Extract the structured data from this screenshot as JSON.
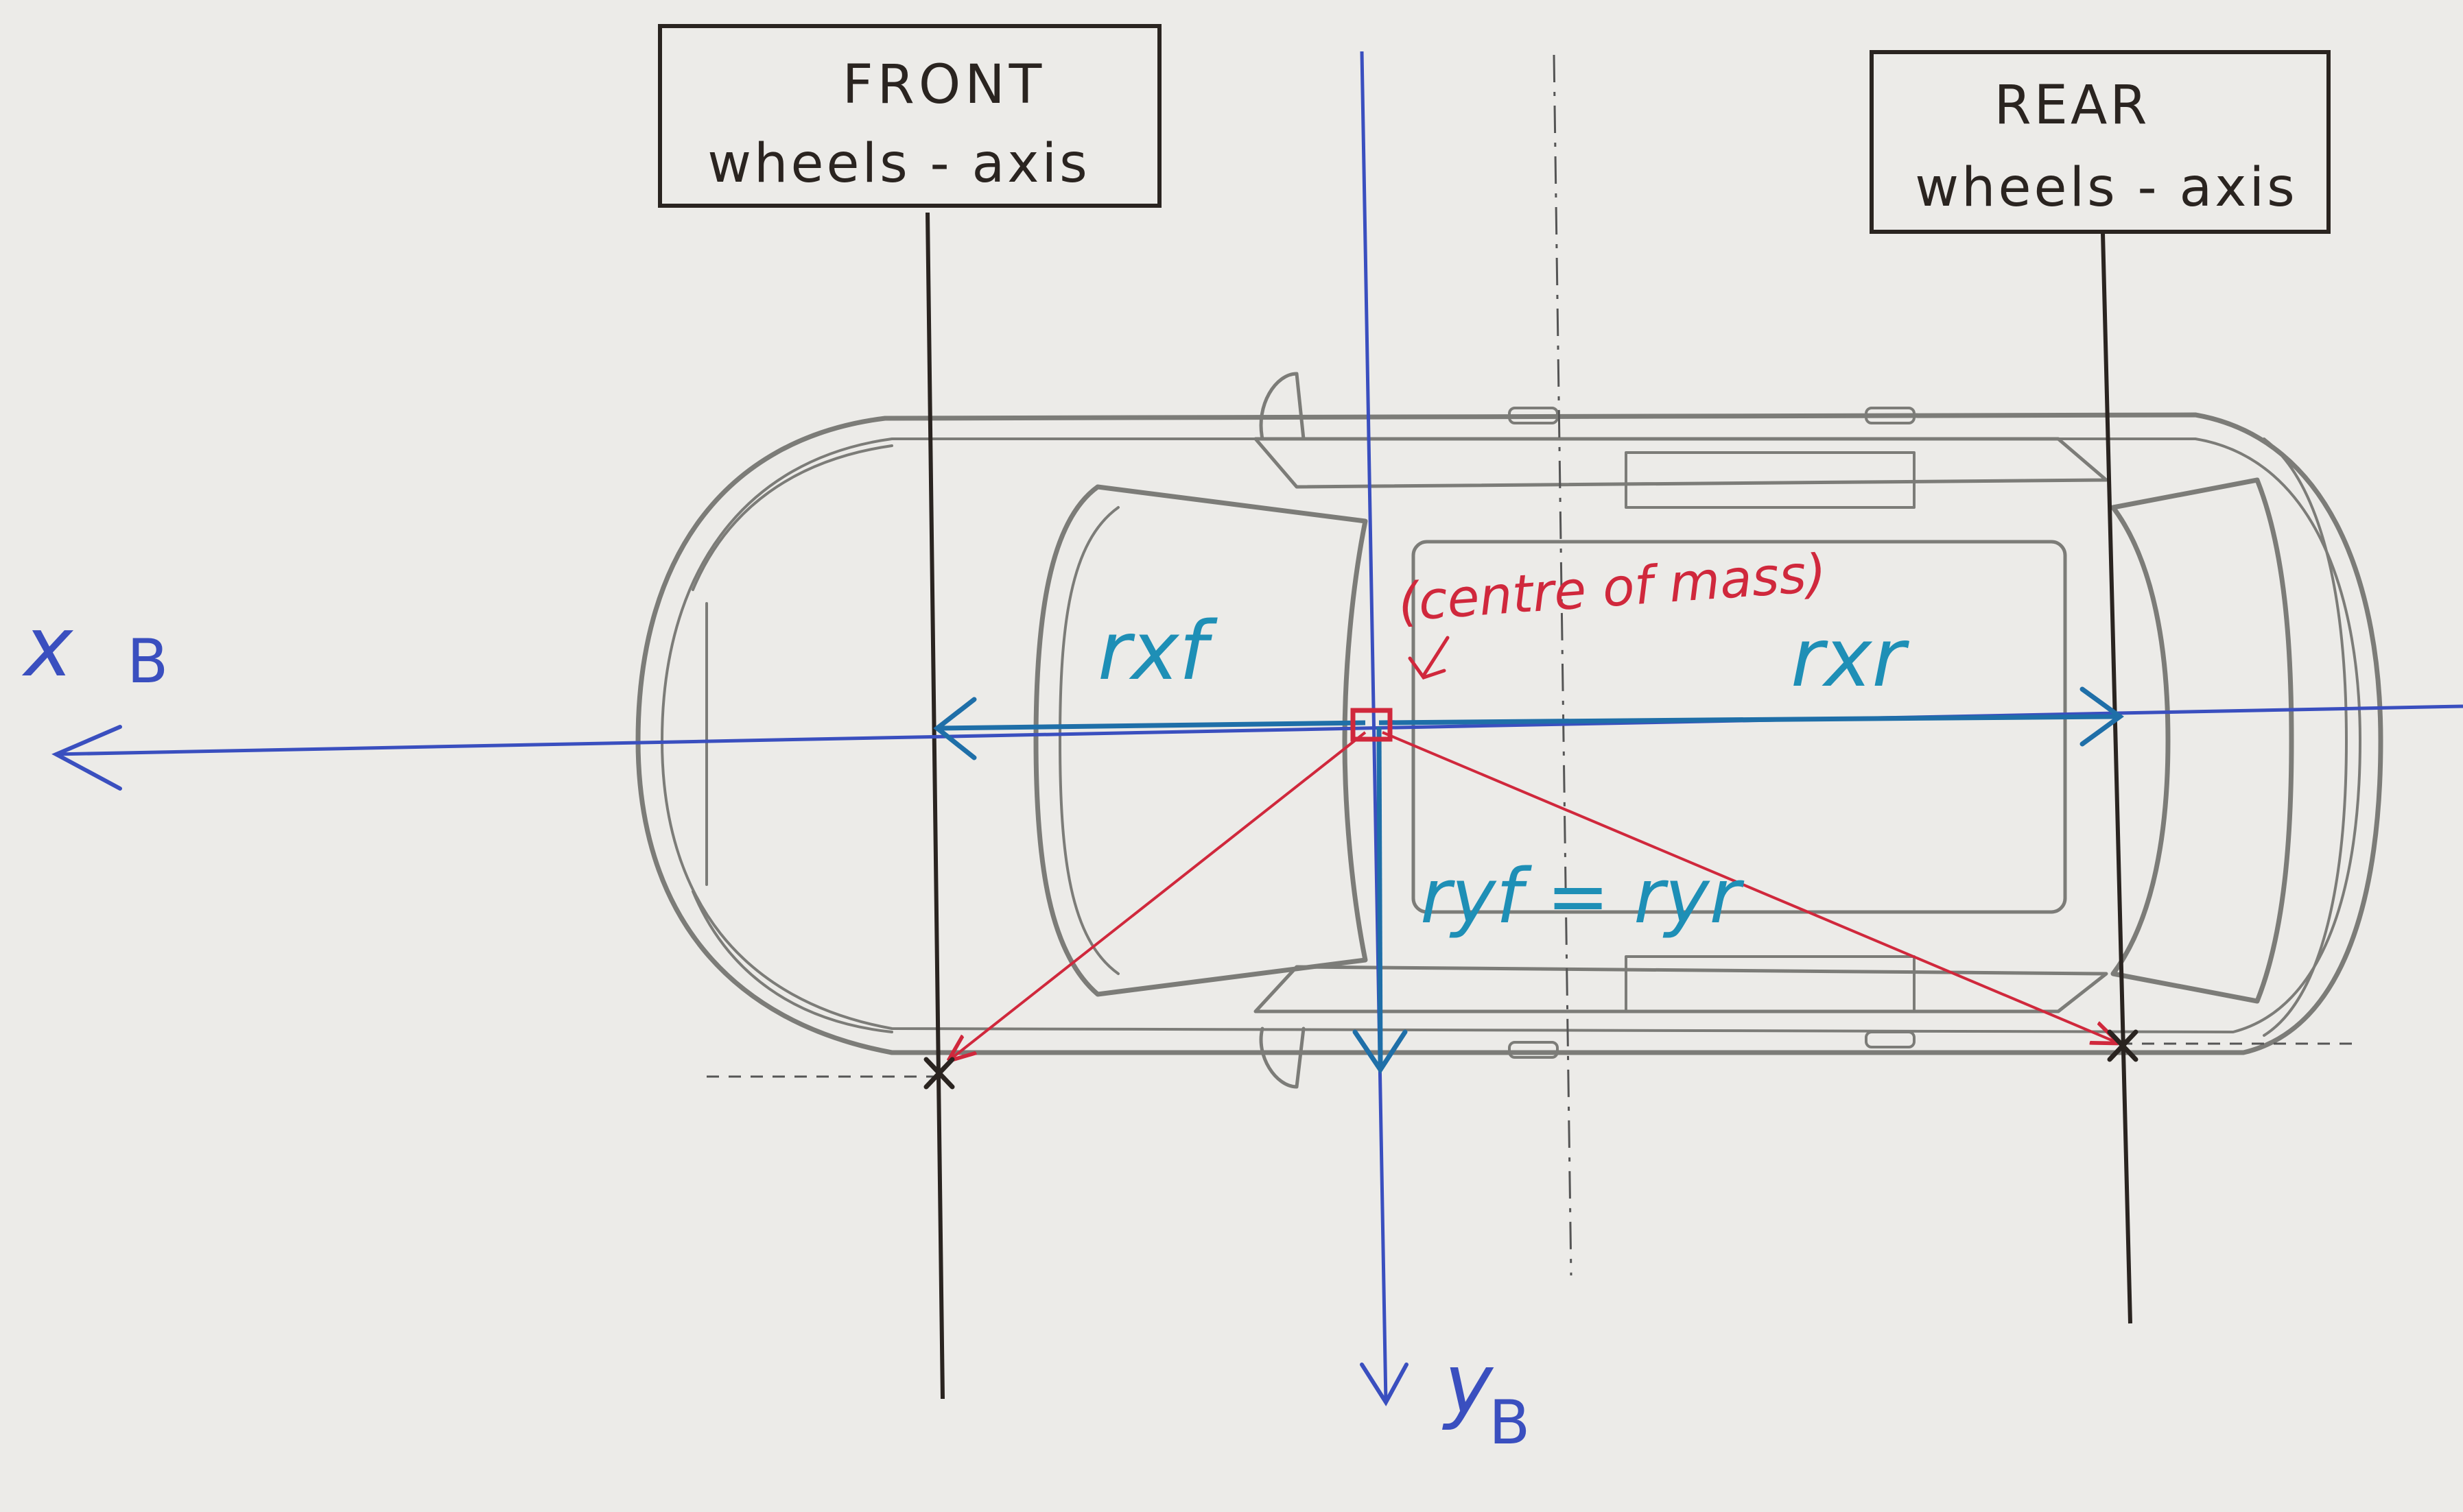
{
  "boxes": {
    "front": {
      "line1": "FRONT",
      "line2": "wheels - axis"
    },
    "rear": {
      "line1": "REAR",
      "line2": "wheels - axis"
    }
  },
  "axes": {
    "x_label": "x",
    "x_sub": "B",
    "y_label": "y",
    "y_sub": "B"
  },
  "labels": {
    "r_xf": "rxf",
    "r_xr": "rxr",
    "r_y": "ryf = ryr",
    "centre_of_mass": "(centre of mass)"
  },
  "colors": {
    "paper": "#ecebe8",
    "ink_dark": "#2a2420",
    "axis_blue": "#3a4fbf",
    "arrow_teal": "#1f6fa8",
    "label_teal": "#1e8fb6",
    "mass_red": "#d0283c",
    "car_gray": "#7c7c78"
  }
}
